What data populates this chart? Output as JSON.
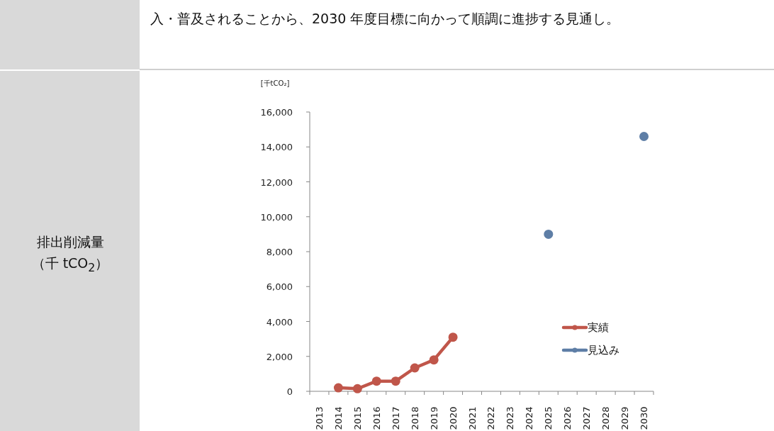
{
  "chart_data": {
    "type": "line",
    "title": "排出削減量（千 tCO$_{2}$）",
    "ylabel": "[千tCO₂]",
    "annotations": [
      "入・普及されることから、2030 年度目標に向かって順調に進捗する見通し。"
    ],
    "categories": [
      "2013",
      "2014",
      "2015",
      "2016",
      "2017",
      "2018",
      "2019",
      "2020",
      "2021",
      "2022",
      "2023",
      "2024",
      "2025",
      "2026",
      "2027",
      "2028",
      "2029",
      "2030"
    ],
    "ylim": [
      0,
      16000
    ],
    "yticks": [
      0,
      {
        "value": 2000,
        "label": "2,000"
      },
      {
        "value": 4000,
        "label": "4,000"
      },
      {
        "value": 6000,
        "label": "6,000"
      },
      {
        "value": 8000,
        "label": "8,000"
      },
      {
        "value": 10000,
        "label": "10,000"
      },
      {
        "value": 12000,
        "label": "12,000"
      },
      {
        "value": 14000,
        "label": "14,000"
      },
      {
        "value": 16000,
        "label": "16,000"
      }
    ],
    "legend": "right",
    "marker": "circle",
    "grid": false,
    "series": [
      {
        "name": "実績",
        "color": "#c0564a",
        "values": [
          null,
          200,
          150,
          580,
          580,
          1340,
          1800,
          3100,
          null,
          null,
          null,
          null,
          null,
          null,
          null,
          null,
          null,
          null
        ]
      },
      {
        "name": "見込み",
        "color": "#5e7ea6",
        "values": [
          null,
          null,
          null,
          null,
          null,
          null,
          null,
          null,
          null,
          null,
          null,
          null,
          9000,
          null,
          null,
          null,
          null,
          14600
        ]
      }
    ]
  }
}
